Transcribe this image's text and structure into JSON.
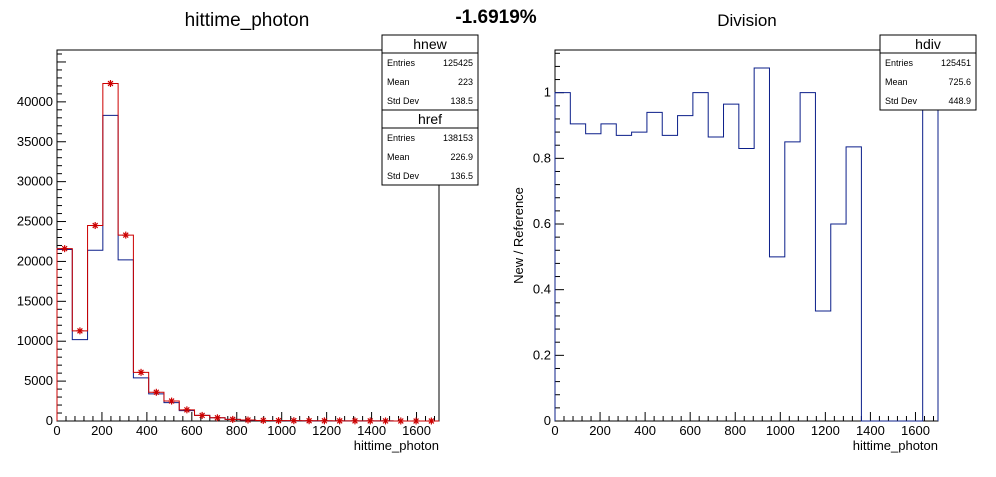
{
  "page_title": "-1.6919%",
  "chart_data": [
    {
      "type": "histogram",
      "title": "hittime_photon",
      "xlabel": "hittime_photon",
      "ylabel": "",
      "xlim": [
        0,
        1700
      ],
      "ylim": [
        0,
        46500
      ],
      "x_ticks": [
        "0",
        "200",
        "400",
        "600",
        "800",
        "1000",
        "1200",
        "1400",
        "1600"
      ],
      "y_ticks": [
        "0",
        "5000",
        "10000",
        "15000",
        "20000",
        "25000",
        "30000",
        "35000",
        "40000"
      ],
      "bin_edges": [
        0,
        68,
        136,
        204,
        272,
        340,
        408,
        476,
        544,
        612,
        680,
        748,
        816,
        884,
        952,
        1020,
        1088,
        1156,
        1224,
        1292,
        1360,
        1428,
        1496,
        1564,
        1632,
        1700
      ],
      "series": [
        {
          "name": "hnew",
          "color": "#0b1f8a",
          "style": "step",
          "values": [
            21500,
            10200,
            21400,
            38300,
            20200,
            5400,
            3400,
            2300,
            1300,
            700,
            400,
            200,
            100,
            60,
            40,
            30,
            25,
            20,
            15,
            12,
            10,
            8,
            5,
            3,
            0
          ]
        },
        {
          "name": "href",
          "color": "#cc0000",
          "style": "step+markers",
          "values": [
            21600,
            11300,
            24500,
            42300,
            23300,
            6100,
            3600,
            2500,
            1400,
            700,
            400,
            200,
            120,
            70,
            50,
            40,
            35,
            25,
            20,
            15,
            12,
            10,
            6,
            4,
            0
          ]
        }
      ],
      "stats": [
        {
          "title": "hnew",
          "rows": [
            {
              "label": "Entries",
              "value": "125425"
            },
            {
              "label": "Mean",
              "value": "223"
            },
            {
              "label": "Std Dev",
              "value": "138.5"
            }
          ]
        },
        {
          "title": "href",
          "rows": [
            {
              "label": "Entries",
              "value": "138153"
            },
            {
              "label": "Mean",
              "value": "226.9"
            },
            {
              "label": "Std Dev",
              "value": "136.5"
            }
          ]
        }
      ]
    },
    {
      "type": "histogram",
      "title": "Division",
      "xlabel": "hittime_photon",
      "ylabel": "New / Reference",
      "xlim": [
        0,
        1700
      ],
      "ylim": [
        0,
        1.13
      ],
      "x_ticks": [
        "0",
        "200",
        "400",
        "600",
        "800",
        "1000",
        "1200",
        "1400",
        "1600"
      ],
      "y_ticks": [
        "0",
        "0.2",
        "0.4",
        "0.6",
        "0.8",
        "1"
      ],
      "bin_edges": [
        0,
        68,
        136,
        204,
        272,
        340,
        408,
        476,
        544,
        612,
        680,
        748,
        816,
        884,
        952,
        1020,
        1088,
        1156,
        1224,
        1292,
        1360,
        1428,
        1496,
        1564,
        1632,
        1700
      ],
      "series": [
        {
          "name": "hdiv",
          "color": "#0b1f8a",
          "style": "step",
          "values": [
            1.0,
            0.905,
            0.875,
            0.905,
            0.87,
            0.88,
            0.94,
            0.87,
            0.93,
            1.0,
            0.865,
            0.965,
            0.83,
            1.075,
            0.5,
            0.85,
            1.0,
            0.335,
            0.6,
            0.835,
            0,
            0,
            0,
            0,
            1.0
          ]
        }
      ],
      "stats": [
        {
          "title": "hdiv",
          "rows": [
            {
              "label": "Entries",
              "value": "125451"
            },
            {
              "label": "Mean",
              "value": "725.6"
            },
            {
              "label": "Std Dev",
              "value": "448.9"
            }
          ]
        }
      ]
    }
  ]
}
